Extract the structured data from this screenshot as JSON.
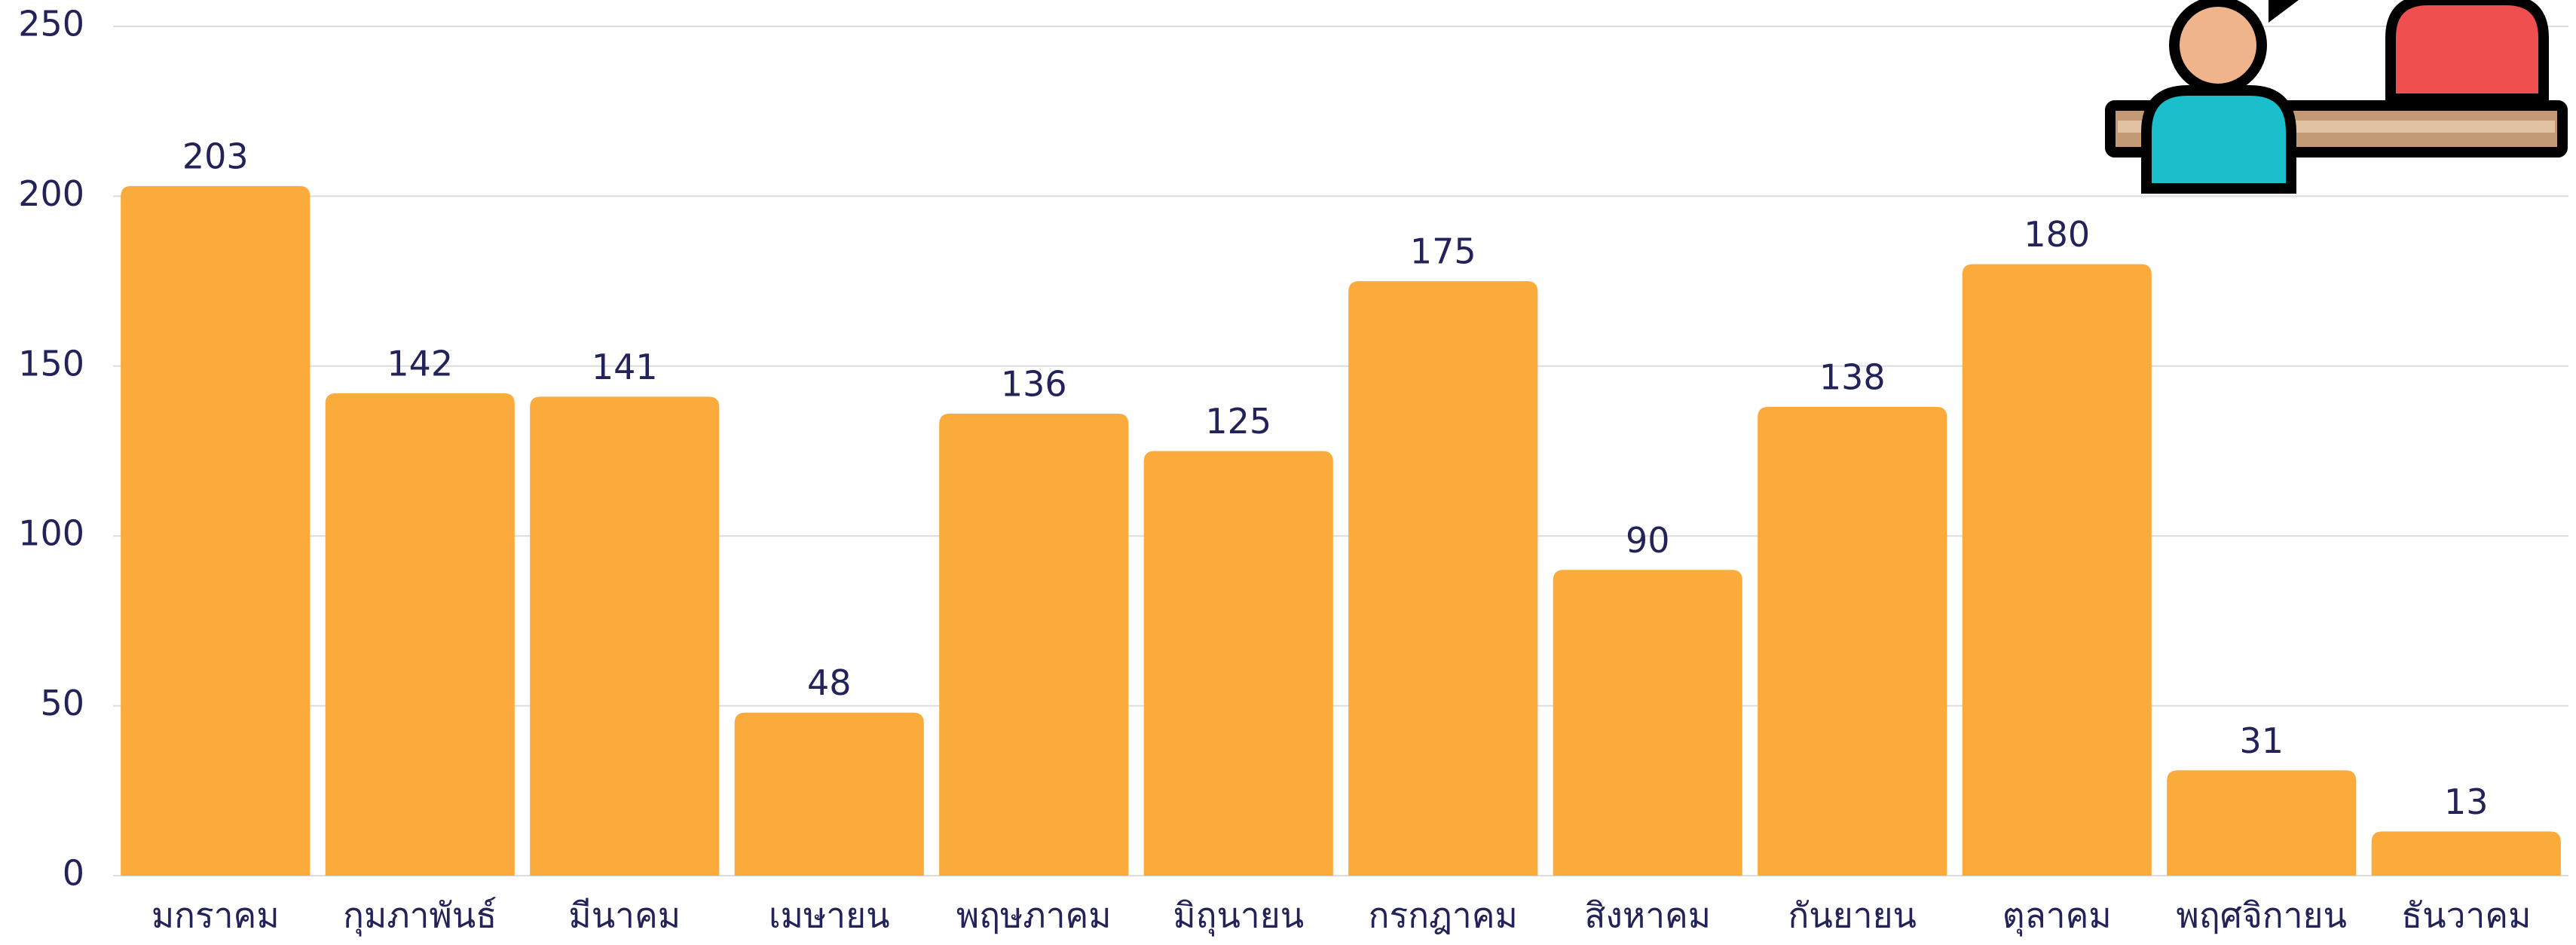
{
  "chart_data": {
    "type": "bar",
    "categories": [
      "มกราคม",
      "กุมภาพันธ์",
      "มีนาคม",
      "เมษายน",
      "พฤษภาคม",
      "มิถุนายน",
      "กรกฎาคม",
      "สิงหาคม",
      "กันยายน",
      "ตุลาคม",
      "พฤศจิกายน",
      "ธันวาคม"
    ],
    "values": [
      203,
      142,
      141,
      48,
      136,
      125,
      175,
      90,
      138,
      180,
      31,
      13
    ],
    "color": "#fbab3c",
    "ylim": [
      0,
      250
    ],
    "yticks": [
      0,
      50,
      100,
      150,
      200,
      250
    ],
    "grid": true
  }
}
